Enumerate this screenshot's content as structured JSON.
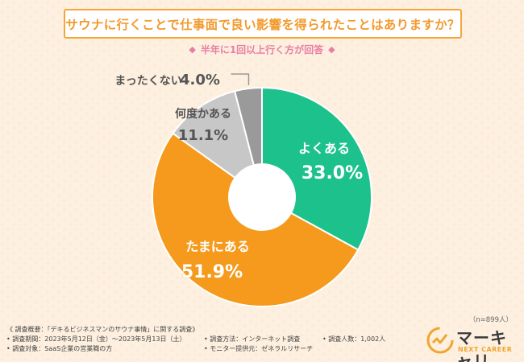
{
  "title": "サウナに行くことで仕事面で良い影響を得られたことはありますか？",
  "subtitle": "半年に1回以上行く方が回答",
  "subtitle_marker": "◆",
  "sample_size": "（n=899人）",
  "colors": {
    "accent": "#f29a2e",
    "subtitle": "#e87fa3",
    "often": "#1dc18c",
    "sometimes": "#f59a1c",
    "rarely": "#c7c7c7",
    "never": "#9a9a9a"
  },
  "chart_data": {
    "type": "pie",
    "donut": true,
    "title": "サウナに行くことで仕事面で良い影響を得られたことはありますか？",
    "categories": [
      "よくある",
      "たまにある",
      "何度かある",
      "まったくない"
    ],
    "values": [
      33.0,
      51.9,
      11.1,
      4.0
    ],
    "value_labels": [
      "33.0%",
      "51.9%",
      "11.1%",
      "4.0%"
    ],
    "colors": [
      "#1dc18c",
      "#f59a1c",
      "#c7c7c7",
      "#9a9a9a"
    ],
    "start": "12 o'clock",
    "direction": "clockwise"
  },
  "footer": {
    "overview": "《 調査概要：「デキるビジネスマンのサウナ事情」に関する調査》",
    "period": "• 調査期間：2023年5月12日（金）〜2023年5月13日（土）",
    "target": "• 調査対象：SaaS企業の営業職の方",
    "method": "• 調査方法：インターネット調査",
    "provider": "• モニター提供元：ゼネラルリサーチ",
    "respondents": "• 調査人数：1,002人"
  },
  "logo": {
    "name": "マーキャリ",
    "sub": "NEXT CAREER",
    "icon": "chart-check-icon"
  }
}
